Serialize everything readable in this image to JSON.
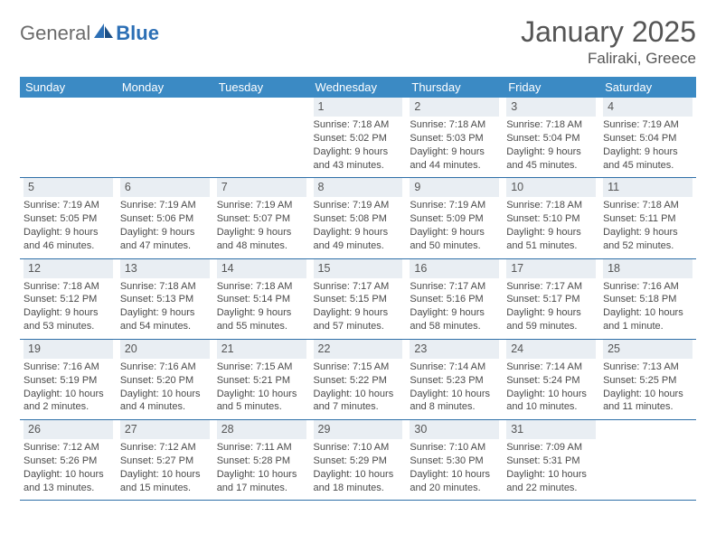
{
  "logo": {
    "text1": "General",
    "text2": "Blue",
    "accent_color": "#2c6fb5",
    "gray_color": "#6b6b6b"
  },
  "title": "January 2025",
  "location": "Faliraki, Greece",
  "colors": {
    "header_bg": "#3b8ac4",
    "header_text": "#ffffff",
    "daynum_bg": "#e9eef3",
    "row_divider": "#2e6fa8",
    "body_text": "#4a4a4a",
    "page_bg": "#ffffff"
  },
  "fonts": {
    "title_size_pt": 24,
    "location_size_pt": 13,
    "dow_size_pt": 10,
    "daynum_size_pt": 10,
    "body_size_pt": 8.5
  },
  "days_of_week": [
    "Sunday",
    "Monday",
    "Tuesday",
    "Wednesday",
    "Thursday",
    "Friday",
    "Saturday"
  ],
  "weeks": [
    [
      {
        "blank": true
      },
      {
        "blank": true
      },
      {
        "blank": true
      },
      {
        "n": "1",
        "sunrise": "7:18 AM",
        "sunset": "5:02 PM",
        "daylight": "9 hours and 43 minutes."
      },
      {
        "n": "2",
        "sunrise": "7:18 AM",
        "sunset": "5:03 PM",
        "daylight": "9 hours and 44 minutes."
      },
      {
        "n": "3",
        "sunrise": "7:18 AM",
        "sunset": "5:04 PM",
        "daylight": "9 hours and 45 minutes."
      },
      {
        "n": "4",
        "sunrise": "7:19 AM",
        "sunset": "5:04 PM",
        "daylight": "9 hours and 45 minutes."
      }
    ],
    [
      {
        "n": "5",
        "sunrise": "7:19 AM",
        "sunset": "5:05 PM",
        "daylight": "9 hours and 46 minutes."
      },
      {
        "n": "6",
        "sunrise": "7:19 AM",
        "sunset": "5:06 PM",
        "daylight": "9 hours and 47 minutes."
      },
      {
        "n": "7",
        "sunrise": "7:19 AM",
        "sunset": "5:07 PM",
        "daylight": "9 hours and 48 minutes."
      },
      {
        "n": "8",
        "sunrise": "7:19 AM",
        "sunset": "5:08 PM",
        "daylight": "9 hours and 49 minutes."
      },
      {
        "n": "9",
        "sunrise": "7:19 AM",
        "sunset": "5:09 PM",
        "daylight": "9 hours and 50 minutes."
      },
      {
        "n": "10",
        "sunrise": "7:18 AM",
        "sunset": "5:10 PM",
        "daylight": "9 hours and 51 minutes."
      },
      {
        "n": "11",
        "sunrise": "7:18 AM",
        "sunset": "5:11 PM",
        "daylight": "9 hours and 52 minutes."
      }
    ],
    [
      {
        "n": "12",
        "sunrise": "7:18 AM",
        "sunset": "5:12 PM",
        "daylight": "9 hours and 53 minutes."
      },
      {
        "n": "13",
        "sunrise": "7:18 AM",
        "sunset": "5:13 PM",
        "daylight": "9 hours and 54 minutes."
      },
      {
        "n": "14",
        "sunrise": "7:18 AM",
        "sunset": "5:14 PM",
        "daylight": "9 hours and 55 minutes."
      },
      {
        "n": "15",
        "sunrise": "7:17 AM",
        "sunset": "5:15 PM",
        "daylight": "9 hours and 57 minutes."
      },
      {
        "n": "16",
        "sunrise": "7:17 AM",
        "sunset": "5:16 PM",
        "daylight": "9 hours and 58 minutes."
      },
      {
        "n": "17",
        "sunrise": "7:17 AM",
        "sunset": "5:17 PM",
        "daylight": "9 hours and 59 minutes."
      },
      {
        "n": "18",
        "sunrise": "7:16 AM",
        "sunset": "5:18 PM",
        "daylight": "10 hours and 1 minute."
      }
    ],
    [
      {
        "n": "19",
        "sunrise": "7:16 AM",
        "sunset": "5:19 PM",
        "daylight": "10 hours and 2 minutes."
      },
      {
        "n": "20",
        "sunrise": "7:16 AM",
        "sunset": "5:20 PM",
        "daylight": "10 hours and 4 minutes."
      },
      {
        "n": "21",
        "sunrise": "7:15 AM",
        "sunset": "5:21 PM",
        "daylight": "10 hours and 5 minutes."
      },
      {
        "n": "22",
        "sunrise": "7:15 AM",
        "sunset": "5:22 PM",
        "daylight": "10 hours and 7 minutes."
      },
      {
        "n": "23",
        "sunrise": "7:14 AM",
        "sunset": "5:23 PM",
        "daylight": "10 hours and 8 minutes."
      },
      {
        "n": "24",
        "sunrise": "7:14 AM",
        "sunset": "5:24 PM",
        "daylight": "10 hours and 10 minutes."
      },
      {
        "n": "25",
        "sunrise": "7:13 AM",
        "sunset": "5:25 PM",
        "daylight": "10 hours and 11 minutes."
      }
    ],
    [
      {
        "n": "26",
        "sunrise": "7:12 AM",
        "sunset": "5:26 PM",
        "daylight": "10 hours and 13 minutes."
      },
      {
        "n": "27",
        "sunrise": "7:12 AM",
        "sunset": "5:27 PM",
        "daylight": "10 hours and 15 minutes."
      },
      {
        "n": "28",
        "sunrise": "7:11 AM",
        "sunset": "5:28 PM",
        "daylight": "10 hours and 17 minutes."
      },
      {
        "n": "29",
        "sunrise": "7:10 AM",
        "sunset": "5:29 PM",
        "daylight": "10 hours and 18 minutes."
      },
      {
        "n": "30",
        "sunrise": "7:10 AM",
        "sunset": "5:30 PM",
        "daylight": "10 hours and 20 minutes."
      },
      {
        "n": "31",
        "sunrise": "7:09 AM",
        "sunset": "5:31 PM",
        "daylight": "10 hours and 22 minutes."
      },
      {
        "blank": true
      }
    ]
  ],
  "labels": {
    "sunrise": "Sunrise:",
    "sunset": "Sunset:",
    "daylight": "Daylight:"
  }
}
